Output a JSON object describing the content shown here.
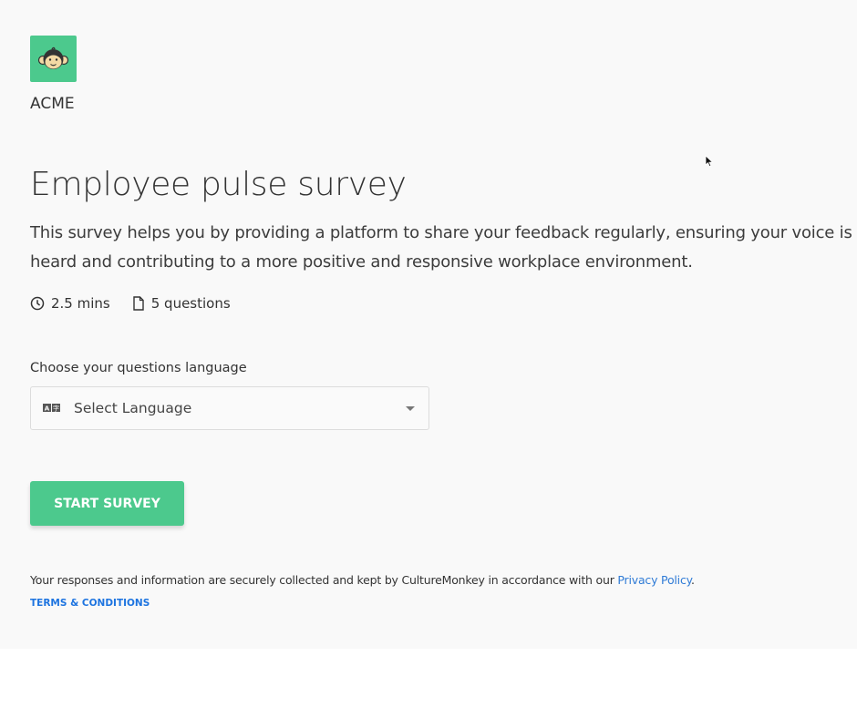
{
  "brand": {
    "company_name": "ACME",
    "logo_icon": "monkey-face-icon",
    "accent_color": "#4cc98d"
  },
  "survey": {
    "title": "Employee pulse survey",
    "description": "This survey helps you by providing a platform to share your feedback regularly, ensuring your voice is heard and contributing to a more positive and responsive workplace environment.",
    "duration": "2.5 mins",
    "question_count": "5 questions"
  },
  "language": {
    "label": "Choose your questions language",
    "placeholder": "Select Language",
    "icon": "translate-icon"
  },
  "actions": {
    "start_label": "START SURVEY"
  },
  "footer": {
    "notice": "Your responses and information are securely collected and kept by CultureMonkey in accordance with our ",
    "privacy_link": "Privacy Policy",
    "notice_end": ".",
    "terms_link": "TERMS & CONDITIONS",
    "link_color": "#2f7bd6"
  }
}
